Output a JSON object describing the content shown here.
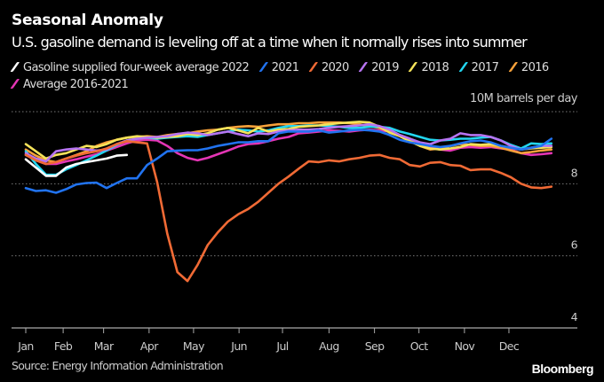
{
  "title": "Seasonal Anomaly",
  "subtitle": "U.S. gasoline demand is leveling off at a time when it normally rises into summer",
  "unit_label": "10M barrels per day",
  "source": "Source: Energy Information Administration",
  "logo": "Bloomberg",
  "chart_data": {
    "type": "line",
    "title": "Seasonal Anomaly",
    "subtitle": "U.S. gasoline demand is leveling off at a time when it normally rises into summer",
    "xlabel": "",
    "ylabel": "10M barrels per day",
    "x_unit": "week of year",
    "x": [
      1,
      2,
      3,
      4,
      5,
      6,
      7,
      8,
      9,
      10,
      11,
      12,
      13,
      14,
      15,
      16,
      17,
      18,
      19,
      20,
      21,
      22,
      23,
      24,
      25,
      26,
      27,
      28,
      29,
      30,
      31,
      32,
      33,
      34,
      35,
      36,
      37,
      38,
      39,
      40,
      41,
      42,
      43,
      44,
      45,
      46,
      47,
      48,
      49,
      50,
      51,
      52,
      53
    ],
    "xlim": [
      1,
      57
    ],
    "ylim": [
      4,
      10
    ],
    "y_ticks": [
      {
        "value": 10,
        "label": "10M barrels per day"
      },
      {
        "value": 8,
        "label": "8"
      },
      {
        "value": 6,
        "label": "6"
      },
      {
        "value": 4,
        "label": "4"
      }
    ],
    "x_ticks": [
      {
        "week": 1,
        "label": "Jan"
      },
      {
        "week": 4.7,
        "label": "Feb"
      },
      {
        "week": 8.7,
        "label": "Mar"
      },
      {
        "week": 13.2,
        "label": "Apr"
      },
      {
        "week": 17.6,
        "label": "May"
      },
      {
        "week": 22.1,
        "label": "Jun"
      },
      {
        "week": 26.4,
        "label": "Jul"
      },
      {
        "week": 31.0,
        "label": "Aug"
      },
      {
        "week": 35.5,
        "label": "Sep"
      },
      {
        "week": 39.9,
        "label": "Oct"
      },
      {
        "week": 44.4,
        "label": "Nov"
      },
      {
        "week": 48.8,
        "label": "Dec"
      }
    ],
    "grid": true,
    "legend_position": "top-left",
    "series": [
      {
        "name": "Average 2016-2021",
        "color": "#e535b5",
        "values": [
          8.8,
          8.65,
          8.55,
          8.55,
          8.62,
          8.68,
          8.75,
          8.82,
          8.92,
          9.02,
          9.12,
          9.2,
          9.22,
          9.2,
          9.05,
          8.85,
          8.72,
          8.65,
          8.72,
          8.82,
          8.92,
          9.03,
          9.1,
          9.12,
          9.18,
          9.25,
          9.3,
          9.4,
          9.42,
          9.45,
          9.48,
          9.47,
          9.45,
          9.48,
          9.5,
          9.48,
          9.45,
          9.35,
          9.25,
          9.12,
          9.0,
          8.95,
          8.92,
          9.0,
          9.02,
          9.0,
          9.02,
          8.98,
          8.95,
          8.85,
          8.8,
          8.82,
          8.85
        ]
      },
      {
        "name": "2016",
        "color": "#f7a13a",
        "values": [
          8.95,
          8.78,
          8.65,
          8.6,
          8.7,
          8.8,
          8.9,
          9.05,
          9.15,
          9.22,
          9.28,
          9.3,
          9.32,
          9.3,
          9.35,
          9.38,
          9.4,
          9.45,
          9.48,
          9.5,
          9.55,
          9.58,
          9.6,
          9.58,
          9.62,
          9.65,
          9.65,
          9.68,
          9.68,
          9.7,
          9.7,
          9.7,
          9.68,
          9.65,
          9.6,
          9.55,
          9.45,
          9.35,
          9.2,
          9.05,
          8.95,
          8.98,
          9.05,
          9.1,
          9.08,
          9.05,
          9.05,
          9.0,
          8.92,
          8.85,
          8.88,
          8.92,
          8.95
        ]
      },
      {
        "name": "2017",
        "color": "#22d6f0",
        "values": [
          8.9,
          8.55,
          8.25,
          8.25,
          8.4,
          8.52,
          8.65,
          8.78,
          8.92,
          9.08,
          9.2,
          9.25,
          9.28,
          9.25,
          9.28,
          9.3,
          9.32,
          9.3,
          9.35,
          9.4,
          9.45,
          9.5,
          9.48,
          9.45,
          9.48,
          9.55,
          9.6,
          9.6,
          9.62,
          9.62,
          9.6,
          9.58,
          9.55,
          9.55,
          9.58,
          9.58,
          9.55,
          9.45,
          9.38,
          9.3,
          9.22,
          9.2,
          9.22,
          9.25,
          9.25,
          9.28,
          9.3,
          9.2,
          9.08,
          8.98,
          9.12,
          9.1,
          9.12
        ]
      },
      {
        "name": "2018",
        "color": "#f5e35a",
        "values": [
          9.1,
          8.9,
          8.7,
          8.8,
          8.85,
          8.95,
          9.05,
          9.02,
          9.1,
          9.22,
          9.28,
          9.32,
          9.3,
          9.28,
          9.3,
          9.32,
          9.38,
          9.35,
          9.4,
          9.5,
          9.55,
          9.48,
          9.4,
          9.55,
          9.45,
          9.5,
          9.52,
          9.58,
          9.6,
          9.62,
          9.65,
          9.68,
          9.7,
          9.72,
          9.7,
          9.58,
          9.42,
          9.32,
          9.18,
          9.05,
          8.98,
          8.95,
          8.98,
          9.02,
          9.1,
          9.08,
          9.1,
          9.05,
          9.0,
          8.95,
          8.98,
          9.0,
          9.02
        ]
      },
      {
        "name": "2019",
        "color": "#b774f2",
        "values": [
          8.85,
          8.7,
          8.62,
          8.9,
          8.95,
          8.98,
          8.95,
          8.92,
          8.95,
          9.1,
          9.2,
          9.25,
          9.28,
          9.3,
          9.32,
          9.38,
          9.42,
          9.4,
          9.35,
          9.4,
          9.45,
          9.38,
          9.32,
          9.4,
          9.38,
          9.45,
          9.48,
          9.5,
          9.5,
          9.52,
          9.55,
          9.58,
          9.6,
          9.62,
          9.65,
          9.6,
          9.5,
          9.35,
          9.25,
          9.15,
          9.1,
          9.2,
          9.25,
          9.4,
          9.35,
          9.35,
          9.3,
          9.2,
          9.05,
          8.95,
          9.0,
          9.05,
          9.05
        ]
      },
      {
        "name": "2020",
        "color": "#f06a35",
        "values": [
          8.8,
          8.65,
          8.55,
          8.6,
          8.7,
          8.78,
          8.85,
          8.9,
          8.98,
          9.1,
          9.18,
          9.15,
          9.12,
          8.05,
          6.62,
          5.55,
          5.3,
          5.75,
          6.3,
          6.65,
          6.95,
          7.15,
          7.3,
          7.5,
          7.75,
          8.0,
          8.2,
          8.42,
          8.62,
          8.6,
          8.65,
          8.62,
          8.68,
          8.72,
          8.78,
          8.8,
          8.72,
          8.68,
          8.52,
          8.48,
          8.58,
          8.6,
          8.52,
          8.5,
          8.38,
          8.4,
          8.4,
          8.3,
          8.18,
          8.0,
          7.9,
          7.88,
          7.92
        ]
      },
      {
        "name": "2021",
        "color": "#2173f0",
        "values": [
          7.88,
          7.8,
          7.82,
          7.75,
          7.85,
          7.98,
          8.02,
          8.03,
          7.88,
          8.02,
          8.15,
          8.15,
          8.52,
          8.7,
          8.9,
          8.92,
          8.93,
          8.93,
          8.98,
          9.05,
          9.1,
          9.15,
          9.15,
          9.18,
          9.18,
          9.4,
          9.45,
          9.45,
          9.45,
          9.48,
          9.42,
          9.45,
          9.48,
          9.5,
          9.48,
          9.45,
          9.35,
          9.22,
          9.15,
          9.1,
          9.05,
          9.02,
          9.05,
          9.12,
          9.18,
          9.2,
          9.15,
          9.05,
          9.0,
          8.95,
          9.0,
          9.05,
          9.25
        ]
      },
      {
        "name": "Gasoline supplied four-week average 2022",
        "color": "#ffffff",
        "values": [
          8.68,
          8.45,
          8.22,
          8.22,
          8.45,
          8.55,
          8.6,
          8.65,
          8.7,
          8.78,
          8.8
        ]
      }
    ]
  },
  "legend": [
    {
      "label": "Gasoline supplied four-week average 2022",
      "color": "#ffffff"
    },
    {
      "label": "2021",
      "color": "#2173f0"
    },
    {
      "label": "2020",
      "color": "#f06a35"
    },
    {
      "label": "2019",
      "color": "#b774f2"
    },
    {
      "label": "2018",
      "color": "#f5e35a"
    },
    {
      "label": "2017",
      "color": "#22d6f0"
    },
    {
      "label": "2016",
      "color": "#f7a13a"
    },
    {
      "label": "Average 2016-2021",
      "color": "#e535b5"
    }
  ]
}
